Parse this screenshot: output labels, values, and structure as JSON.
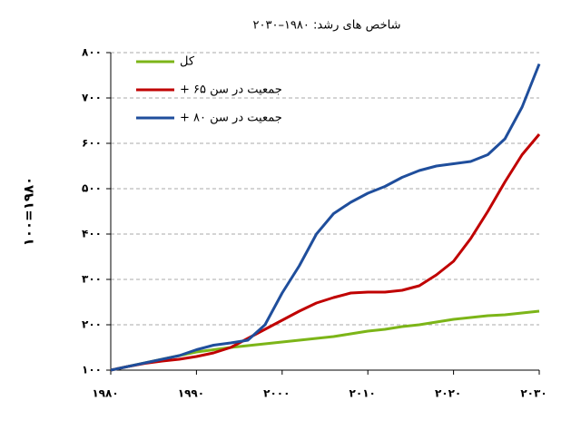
{
  "chart_data": {
    "type": "line",
    "title": "شاخص های رشد:  ۱۹۸۰–۲۰۳۰",
    "y_label": "۱۰۰=۱۹۸۰",
    "x": [
      1980,
      1982,
      1984,
      1986,
      1988,
      1990,
      1992,
      1994,
      1996,
      1998,
      2000,
      2002,
      2004,
      2006,
      2008,
      2010,
      2012,
      2014,
      2016,
      2018,
      2020,
      2022,
      2024,
      2026,
      2028,
      2030
    ],
    "series": [
      {
        "name": "کل",
        "color": "#7cb518",
        "values": [
          100,
          108,
          116,
          124,
          132,
          140,
          145,
          150,
          154,
          158,
          162,
          166,
          170,
          174,
          180,
          186,
          190,
          196,
          200,
          206,
          212,
          216,
          220,
          222,
          226,
          230
        ]
      },
      {
        "name": "جمعیت در سن ۶۵ +",
        "color": "#c00000",
        "values": [
          100,
          108,
          115,
          120,
          124,
          130,
          138,
          150,
          170,
          190,
          210,
          230,
          248,
          260,
          270,
          272,
          272,
          276,
          286,
          310,
          340,
          390,
          450,
          515,
          575,
          620
        ]
      },
      {
        "name": "جمعیت در سن ۸۰ +",
        "color": "#1f4e9c",
        "values": [
          100,
          108,
          116,
          124,
          132,
          145,
          155,
          160,
          166,
          200,
          270,
          330,
          400,
          445,
          470,
          490,
          505,
          525,
          540,
          550,
          555,
          560,
          575,
          610,
          680,
          775
        ]
      }
    ],
    "xlim": [
      1980,
      2030
    ],
    "xticks": [
      {
        "value": 1980,
        "label": "۱۹۸۰"
      },
      {
        "value": 1990,
        "label": "۱۹۹۰"
      },
      {
        "value": 2000,
        "label": "۲۰۰۰"
      },
      {
        "value": 2010,
        "label": "۲۰۱۰"
      },
      {
        "value": 2020,
        "label": "۲۰۲۰"
      },
      {
        "value": 2030,
        "label": "۲۰۳۰"
      }
    ],
    "ylim": [
      100,
      800
    ],
    "yticks": [
      {
        "value": 100,
        "label": "۱۰۰"
      },
      {
        "value": 200,
        "label": "۲۰۰"
      },
      {
        "value": 300,
        "label": "۳۰۰"
      },
      {
        "value": 400,
        "label": "۴۰۰"
      },
      {
        "value": 500,
        "label": "۵۰۰"
      },
      {
        "value": 600,
        "label": "۶۰۰"
      },
      {
        "value": 700,
        "label": "۷۰۰"
      },
      {
        "value": 800,
        "label": "۸۰۰"
      }
    ],
    "grid": true,
    "legend": "upper left"
  }
}
